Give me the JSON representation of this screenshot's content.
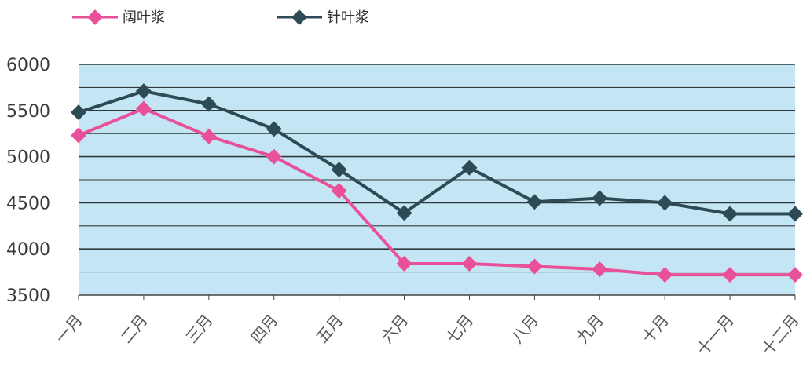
{
  "chart_data": {
    "type": "line",
    "categories": [
      "一月",
      "二月",
      "三月",
      "四月",
      "五月",
      "六月",
      "七月",
      "八月",
      "九月",
      "十月",
      "十一月",
      "十二月"
    ],
    "series": [
      {
        "name": "阔叶浆",
        "color": "#e8509a",
        "values": [
          5230,
          5520,
          5220,
          5000,
          4630,
          3840,
          3840,
          3810,
          3780,
          3720,
          3720,
          3720
        ]
      },
      {
        "name": "针叶浆",
        "color": "#2e4a55",
        "values": [
          5480,
          5710,
          5570,
          5300,
          4860,
          4390,
          4880,
          4510,
          4550,
          4500,
          4380,
          4380
        ]
      }
    ],
    "y_ticks": [
      "3500",
      "4000",
      "4500",
      "5000",
      "5500",
      "6000"
    ],
    "ylim": [
      3500,
      6000
    ],
    "grid": true,
    "legend_position": "top-left",
    "plot_background": "#c4e6f4"
  }
}
